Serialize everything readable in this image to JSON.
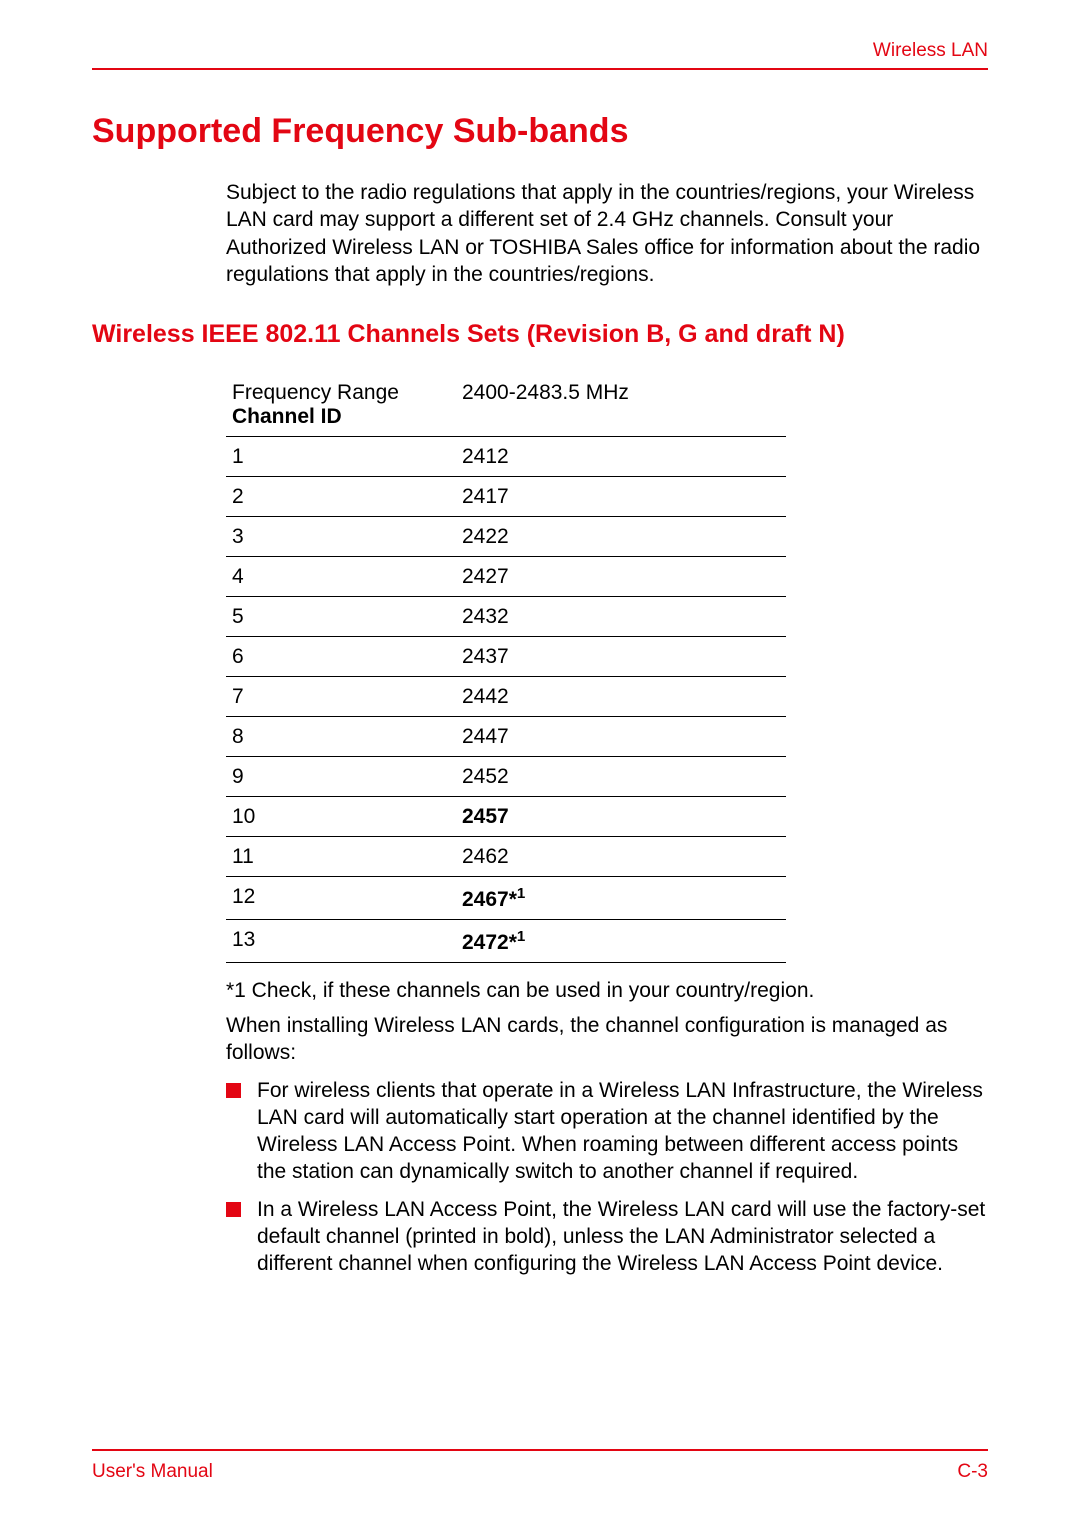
{
  "colors": {
    "accent": "#e30613",
    "text": "#000000",
    "background": "#ffffff",
    "rule": "#000000"
  },
  "header": {
    "label": "Wireless LAN"
  },
  "h1": "Supported Frequency Sub-bands",
  "intro": "Subject to the radio regulations that apply in the countries/regions, your Wireless LAN card may support a different set of 2.4 GHz channels. Consult your Authorized Wireless LAN or TOSHIBA Sales office for information about the radio regulations that apply in the countries/regions.",
  "h2": "Wireless IEEE 802.11 Channels Sets (Revision B, G and draft N)",
  "table": {
    "header_col1_line1": "Frequency Range",
    "header_col1_line2": "Channel ID",
    "header_col2": "2400-2483.5 MHz",
    "rows": [
      {
        "id": "1",
        "freq": "2412",
        "bold": false,
        "note": ""
      },
      {
        "id": "2",
        "freq": "2417",
        "bold": false,
        "note": ""
      },
      {
        "id": "3",
        "freq": "2422",
        "bold": false,
        "note": ""
      },
      {
        "id": "4",
        "freq": "2427",
        "bold": false,
        "note": ""
      },
      {
        "id": "5",
        "freq": "2432",
        "bold": false,
        "note": ""
      },
      {
        "id": "6",
        "freq": "2437",
        "bold": false,
        "note": ""
      },
      {
        "id": "7",
        "freq": "2442",
        "bold": false,
        "note": ""
      },
      {
        "id": "8",
        "freq": "2447",
        "bold": false,
        "note": ""
      },
      {
        "id": "9",
        "freq": "2452",
        "bold": false,
        "note": ""
      },
      {
        "id": "10",
        "freq": "2457",
        "bold": true,
        "note": ""
      },
      {
        "id": "11",
        "freq": "2462",
        "bold": false,
        "note": ""
      },
      {
        "id": "12",
        "freq": "2467",
        "bold": true,
        "note": "*1"
      },
      {
        "id": "13",
        "freq": "2472",
        "bold": true,
        "note": "*1"
      }
    ]
  },
  "footnote": "*1 Check, if these channels can be used in your country/region.",
  "para": "When installing Wireless LAN cards, the channel configuration is managed as follows:",
  "bullets": [
    "For wireless clients that operate in a Wireless LAN Infrastructure, the Wireless LAN card will automatically start operation at the channel identified by the Wireless LAN Access Point. When roaming between different access points the station can dynamically switch to another channel if required.",
    "In a Wireless LAN Access Point, the Wireless LAN card will use the factory-set default channel (printed in bold), unless the LAN Administrator selected a different channel when configuring the Wireless LAN Access Point device."
  ],
  "footer": {
    "left": "User's Manual",
    "right": "C-3"
  }
}
